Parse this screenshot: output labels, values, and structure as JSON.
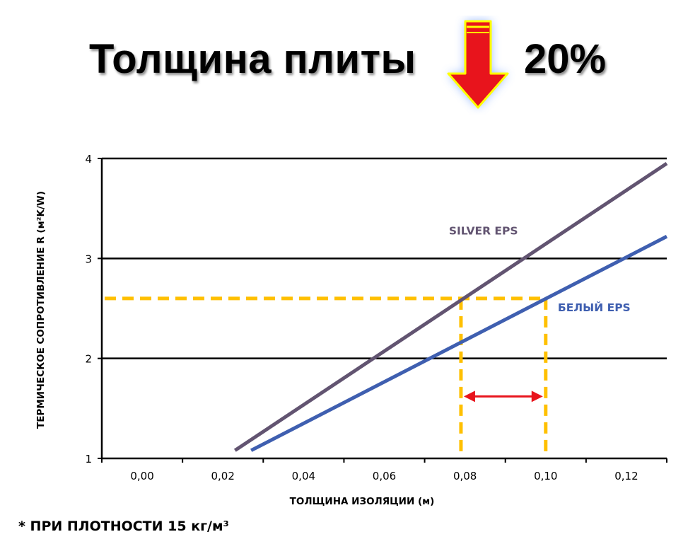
{
  "header": {
    "title": "Толщина плиты",
    "reduction": "20%"
  },
  "footnote": "* ПРИ ПЛОТНОСТИ 15 кг/м³",
  "colors": {
    "silver": "#625471",
    "white_eps": "#3f5fb0",
    "guide": "#ffc000",
    "arrow": "#e8141c",
    "arrow_outline": "#ffff00",
    "grid": "#000000"
  },
  "chart_data": {
    "type": "line",
    "xlabel": "ТОЛЩИНА ИЗОЛЯЦИИ (м)",
    "ylabel": "ТЕРМИЧЕСКОЕ СОПРОТИВЛЕНИЕ R (м²K/W)",
    "xlim": [
      -0.01,
      0.13
    ],
    "ylim": [
      1,
      4
    ],
    "x_ticks": [
      0.0,
      0.02,
      0.04,
      0.06,
      0.08,
      0.1,
      0.12
    ],
    "x_tick_labels": [
      "0,00",
      "0,02",
      "0,04",
      "0,06",
      "0,08",
      "0,10",
      "0,12"
    ],
    "y_ticks": [
      1,
      2,
      3,
      4
    ],
    "y_tick_labels": [
      "1",
      "2",
      "3",
      "4"
    ],
    "gridlines_y": [
      2,
      3,
      4
    ],
    "series": [
      {
        "name": "SILVER EPS",
        "color": "#625471",
        "x": [
          0.023,
          0.13
        ],
        "y": [
          1.08,
          3.95
        ]
      },
      {
        "name": "БЕЛЫЙ EPS",
        "color": "#3f5fb0",
        "x": [
          0.027,
          0.13
        ],
        "y": [
          1.08,
          3.22
        ]
      }
    ],
    "annotations": {
      "reference_r": 2.6,
      "silver_thickness": 0.079,
      "white_thickness": 0.1,
      "comparison_r": 1.62
    }
  }
}
